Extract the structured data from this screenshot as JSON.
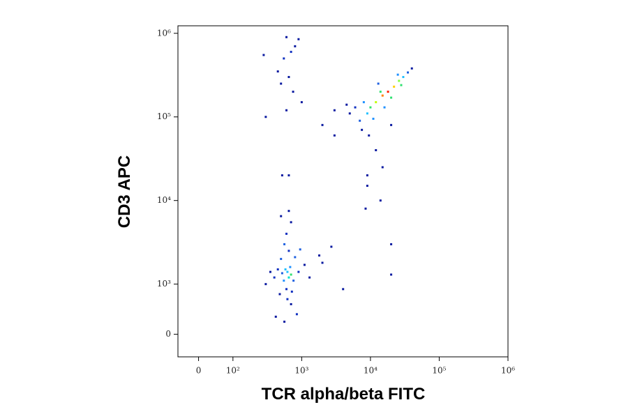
{
  "chart_data": {
    "type": "scatter",
    "x_label": "TCR alpha/beta FITC",
    "y_label": "CD3 APC",
    "xscale": {
      "type": "biexponential",
      "linear_below": 100,
      "linear_decades": 0.5
    },
    "yscale": {
      "type": "biexponential",
      "linear_below": 1000,
      "linear_decades": 0.6
    },
    "xlim": [
      -60,
      1000000
    ],
    "ylim": [
      -450,
      1230000
    ],
    "xticks": [
      0,
      {
        "value": 100,
        "label": "10²"
      },
      {
        "value": 1000,
        "label": "10³"
      },
      {
        "value": 10000,
        "label": "10⁴"
      },
      {
        "value": 100000,
        "label": "10⁵"
      },
      {
        "value": 1000000,
        "label": "10⁶"
      }
    ],
    "yticks": [
      0,
      {
        "value": 1000,
        "label": "10³"
      },
      {
        "value": 10000,
        "label": "10⁴"
      },
      {
        "value": 100000,
        "label": "10⁵"
      },
      {
        "value": 1000000,
        "label": "10⁶"
      }
    ],
    "x": [
      620,
      650,
      580,
      700,
      550,
      680,
      520,
      760,
      600,
      720,
      450,
      900,
      500,
      800,
      650,
      400,
      1100,
      350,
      620,
      700,
      480,
      1300,
      300,
      560,
      600,
      700,
      500,
      650,
      420,
      560,
      1800,
      2000,
      2700,
      4000,
      850,
      950,
      18000,
      15000,
      22000,
      12000,
      26000,
      10000,
      30000,
      9000,
      14000,
      20000,
      8000,
      11000,
      35000,
      7000,
      6000,
      16000,
      25000,
      5000,
      4500,
      7500,
      20000,
      40000,
      3000,
      9500,
      13000,
      28000,
      600,
      700,
      550,
      800,
      650,
      500,
      750,
      450,
      900,
      600,
      300,
      280,
      1000,
      650,
      520,
      3000,
      2000,
      12000,
      15000,
      9000,
      14000,
      8500,
      20000,
      20000,
      9000
    ],
    "y": [
      1400,
      1200,
      1500,
      1300,
      1100,
      1600,
      1350,
      1100,
      900,
      850,
      1500,
      1400,
      2000,
      2100,
      2500,
      1200,
      1700,
      1400,
      700,
      600,
      800,
      1200,
      1000,
      3000,
      4000,
      5500,
      6500,
      7500,
      350,
      250,
      2200,
      1800,
      2800,
      900,
      400,
      2600,
      200000,
      180000,
      230000,
      150000,
      270000,
      130000,
      300000,
      110000,
      200000,
      170000,
      150000,
      95000,
      340000,
      90000,
      130000,
      130000,
      320000,
      110000,
      140000,
      70000,
      80000,
      380000,
      120000,
      60000,
      250000,
      240000,
      900000,
      600000,
      500000,
      700000,
      300000,
      250000,
      200000,
      350000,
      850000,
      120000,
      100000,
      550000,
      150000,
      20000,
      20000,
      60000,
      80000,
      40000,
      25000,
      15000,
      10000,
      8000,
      3000,
      1300,
      20000
    ],
    "colors": [
      "#22c0ff",
      "#00e0d0",
      "#22c0ff",
      "#30e070",
      "#1e90ff",
      "#1e90ff",
      "#1e60e0",
      "#1e60e0",
      "#1030c0",
      "#1030c0",
      "#1030c0",
      "#1030c0",
      "#1e60e0",
      "#1e60e0",
      "#1030c0",
      "#1030c0",
      "#0a1aa0",
      "#0a1aa0",
      "#1030c0",
      "#0a1aa0",
      "#0a1aa0",
      "#0a1aa0",
      "#0a1aa0",
      "#1e60e0",
      "#1030c0",
      "#0a1aa0",
      "#0a1aa0",
      "#0a1aa0",
      "#0a1aa0",
      "#0a1aa0",
      "#0a1aa0",
      "#0a1aa0",
      "#0a1aa0",
      "#0a1aa0",
      "#1030c0",
      "#1e60e0",
      "#ff2000",
      "#ff8000",
      "#ffd000",
      "#c0ff00",
      "#80ff40",
      "#30e070",
      "#22c0ff",
      "#22c0ff",
      "#30e070",
      "#30e070",
      "#1e90ff",
      "#1e90ff",
      "#1e60e0",
      "#1e60e0",
      "#1030c0",
      "#1e90ff",
      "#1e90ff",
      "#0a1aa0",
      "#0a1aa0",
      "#0a1aa0",
      "#0a1aa0",
      "#0a1aa0",
      "#0a1aa0",
      "#0a1aa0",
      "#1e60e0",
      "#30e070",
      "#0a1aa0",
      "#1030c0",
      "#1030c0",
      "#0a1aa0",
      "#0a1aa0",
      "#0a1aa0",
      "#0a1aa0",
      "#0a1aa0",
      "#0a1aa0",
      "#0a1aa0",
      "#0a1aa0",
      "#0a1aa0",
      "#0a1aa0",
      "#0a1aa0",
      "#0a1aa0",
      "#0a1aa0",
      "#0a1aa0",
      "#0a1aa0",
      "#0a1aa0",
      "#0a1aa0",
      "#0a1aa0",
      "#0a1aa0",
      "#0a1aa0",
      "#0a1aa0",
      "#0a1aa0"
    ]
  }
}
